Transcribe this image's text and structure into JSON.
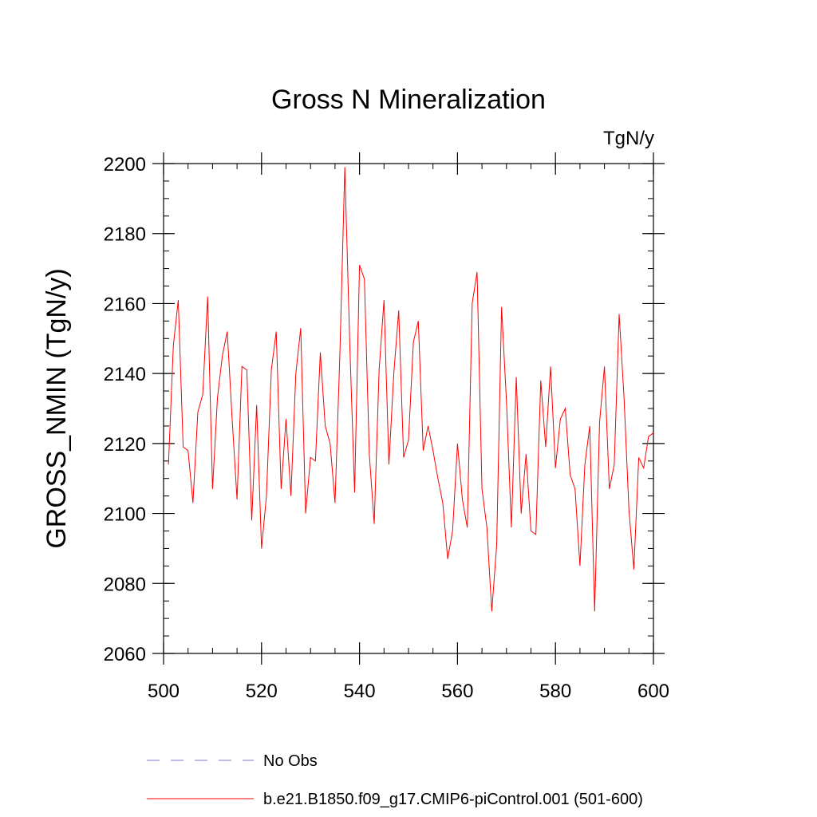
{
  "chart_data": {
    "type": "line",
    "title": "Gross N Mineralization",
    "units_label": "TgN/y",
    "xlabel": "",
    "ylabel": "GROSS_NMIN  (TgN/y)",
    "xlim": [
      500,
      600
    ],
    "ylim": [
      2060,
      2200
    ],
    "x_ticks": [
      "500",
      "520",
      "540",
      "560",
      "580",
      "600"
    ],
    "y_ticks": [
      "2060",
      "2080",
      "2100",
      "2120",
      "2140",
      "2160",
      "2180",
      "2200"
    ],
    "x_minor_step": 5,
    "y_minor_step": 5,
    "series": [
      {
        "name": "b.e21.B1850.f09_g17.CMIP6-piControl.001 (501-600)",
        "color": "#ff0000",
        "dash": "solid",
        "x": [
          501,
          502,
          503,
          504,
          505,
          506,
          507,
          508,
          509,
          510,
          511,
          512,
          513,
          514,
          515,
          516,
          517,
          518,
          519,
          520,
          521,
          522,
          523,
          524,
          525,
          526,
          527,
          528,
          529,
          530,
          531,
          532,
          533,
          534,
          535,
          536,
          537,
          538,
          539,
          540,
          541,
          542,
          543,
          544,
          545,
          546,
          547,
          548,
          549,
          550,
          551,
          552,
          553,
          554,
          555,
          556,
          557,
          558,
          559,
          560,
          561,
          562,
          563,
          564,
          565,
          566,
          567,
          568,
          569,
          570,
          571,
          572,
          573,
          574,
          575,
          576,
          577,
          578,
          579,
          580,
          581,
          582,
          583,
          584,
          585,
          586,
          587,
          588,
          589,
          590,
          591,
          592,
          593,
          594,
          595,
          596,
          597,
          598,
          599,
          600
        ],
        "values": [
          2114,
          2148,
          2161,
          2119,
          2118,
          2103,
          2129,
          2134,
          2162,
          2107,
          2133,
          2145,
          2152,
          2127,
          2104,
          2142,
          2141,
          2098,
          2131,
          2090,
          2105,
          2141,
          2152,
          2107,
          2127,
          2105,
          2140,
          2153,
          2100,
          2116,
          2115,
          2146,
          2125,
          2120,
          2103,
          2146,
          2199,
          2149,
          2106,
          2171,
          2167,
          2117,
          2097,
          2141,
          2161,
          2114,
          2140,
          2158,
          2116,
          2121,
          2149,
          2155,
          2118,
          2125,
          2118,
          2110,
          2103,
          2087,
          2095,
          2120,
          2104,
          2096,
          2160,
          2169,
          2107,
          2096,
          2072,
          2091,
          2159,
          2132,
          2096,
          2139,
          2100,
          2117,
          2095,
          2094,
          2138,
          2119,
          2142,
          2113,
          2127,
          2130,
          2111,
          2107,
          2085,
          2114,
          2125,
          2072,
          2126,
          2142,
          2107,
          2114,
          2157,
          2133,
          2101,
          2084,
          2116,
          2113,
          2122,
          2123
        ]
      }
    ],
    "legend": [
      {
        "label": "No Obs",
        "color": "#7a7ac8",
        "dash": "dashed"
      },
      {
        "label": "b.e21.B1850.f09_g17.CMIP6-piControl.001 (501-600)",
        "color": "#ff0000",
        "dash": "solid"
      }
    ]
  }
}
